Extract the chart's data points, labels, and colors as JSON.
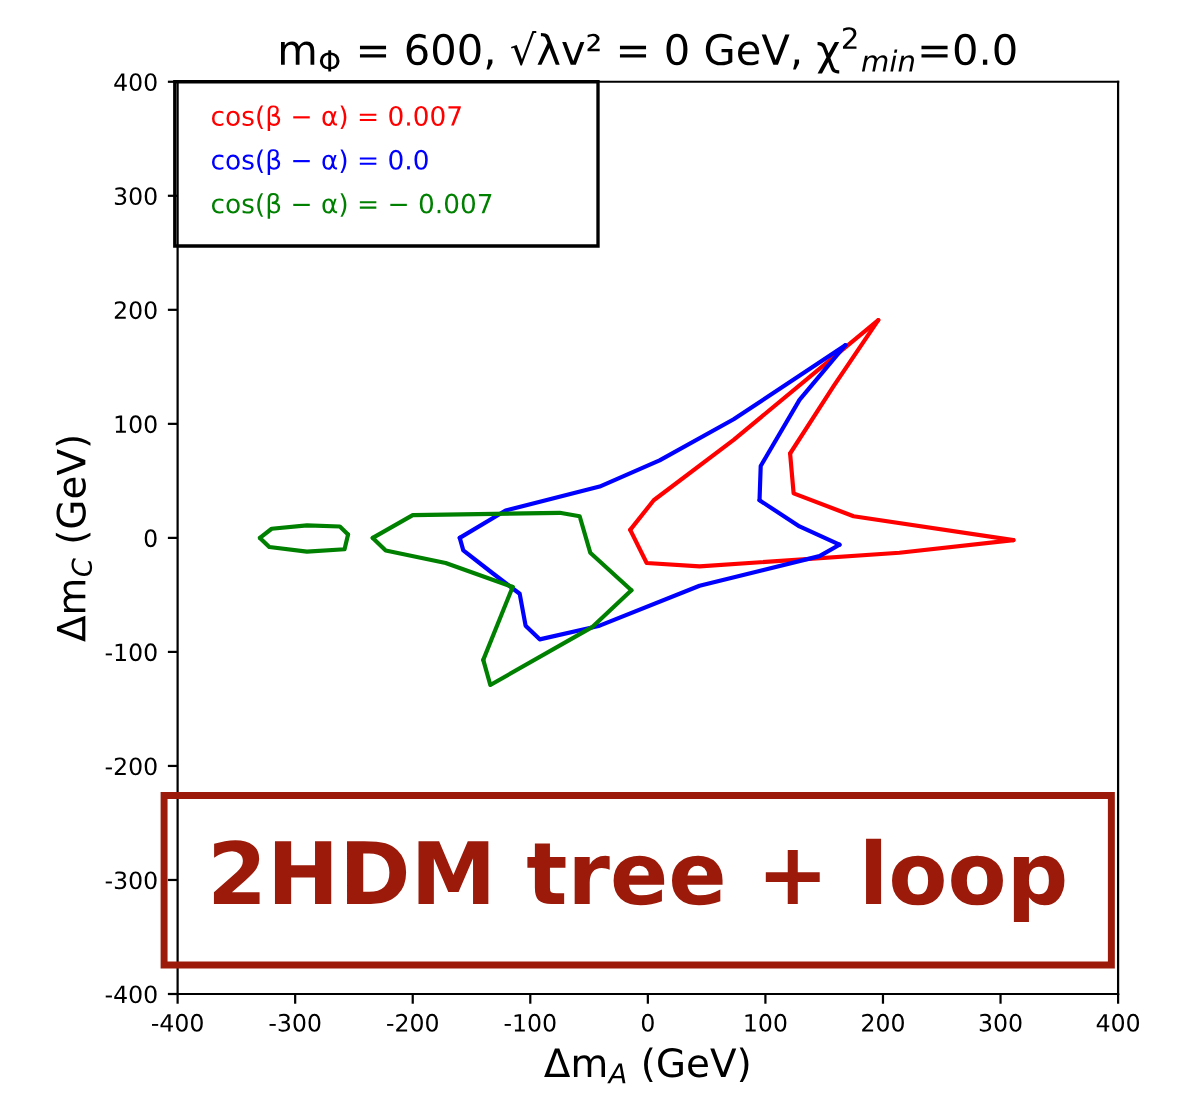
{
  "chart_data": {
    "type": "line",
    "title": "m$_{Φ}$ = 600, √λv² = 0 GeV, χ$^{2}$$_{min}$=0.0",
    "xlabel": "Δm$_{A}$ (GeV)",
    "ylabel": "Δm$_{C}$ (GeV)",
    "xlim": [
      -400,
      400
    ],
    "ylim": [
      -400,
      400
    ],
    "xticks": [
      -400,
      -300,
      -200,
      -100,
      0,
      100,
      200,
      300,
      400
    ],
    "yticks": [
      -400,
      -300,
      -200,
      -100,
      0,
      100,
      200,
      300,
      400
    ],
    "grid": false,
    "marker": "none",
    "line_style": "solid",
    "annotations": [
      "2HDM tree + loop"
    ],
    "series": [
      {
        "name": "cos(β − α) = 0.007",
        "color": "#ff0000",
        "x": [
          121,
          158,
          196
        ],
        "values": [
          74,
          133,
          191
        ]
      },
      {
        "color": "#ff0000",
        "x": [
          121,
          124,
          175,
          311
        ],
        "values": [
          74,
          39,
          19,
          -2
        ]
      },
      {
        "color": "#ff0000",
        "x": [
          -15,
          -1,
          44,
          214,
          311
        ],
        "values": [
          7,
          -22,
          -25,
          -13,
          -2
        ]
      },
      {
        "color": "#ff0000",
        "x": [
          -15,
          5,
          73,
          169,
          196
        ],
        "values": [
          7,
          33,
          86,
          168,
          191
        ]
      },
      {
        "name": "cos(β − α) = 0.0",
        "color": "#0000ff",
        "x": [
          -160,
          -121,
          -41,
          10,
          73,
          168
        ],
        "values": [
          0,
          24,
          45,
          68,
          104,
          169
        ]
      },
      {
        "color": "#0000ff",
        "x": [
          95,
          96,
          129,
          168
        ],
        "values": [
          33,
          63,
          121,
          169
        ]
      },
      {
        "color": "#0000ff",
        "x": [
          95,
          129,
          163
        ],
        "values": [
          33,
          10,
          -6
        ]
      },
      {
        "color": "#0000ff",
        "x": [
          -160,
          -157,
          -132,
          -109,
          -104,
          -92,
          -41,
          44,
          146,
          163
        ],
        "values": [
          0,
          -11,
          -31,
          -49,
          -77,
          -89,
          -77,
          -42,
          -16,
          -6
        ]
      },
      {
        "name": "cos(β − α) = − 0.007",
        "color": "#008000",
        "x": [
          -234,
          -200,
          -75,
          -58,
          -49,
          -14
        ],
        "values": [
          0,
          20,
          22,
          19,
          -13,
          -46
        ]
      },
      {
        "color": "#008000",
        "x": [
          -140,
          -134,
          -47,
          -14
        ],
        "values": [
          -107,
          -129,
          -78,
          -46
        ]
      },
      {
        "color": "#008000",
        "x": [
          -140,
          -115
        ],
        "values": [
          -107,
          -43
        ]
      },
      {
        "color": "#008000",
        "x": [
          -234,
          -223,
          -172,
          -115
        ],
        "values": [
          0,
          -11,
          -22,
          -43
        ]
      },
      {
        "color": "#008000",
        "x": [
          -330,
          -320,
          -290,
          -262,
          -255
        ],
        "values": [
          0,
          8,
          11,
          10,
          3
        ]
      },
      {
        "color": "#008000",
        "x": [
          -330,
          -322,
          -290,
          -258,
          -255
        ],
        "values": [
          0,
          -8,
          -12,
          -10,
          3
        ]
      }
    ]
  }
}
